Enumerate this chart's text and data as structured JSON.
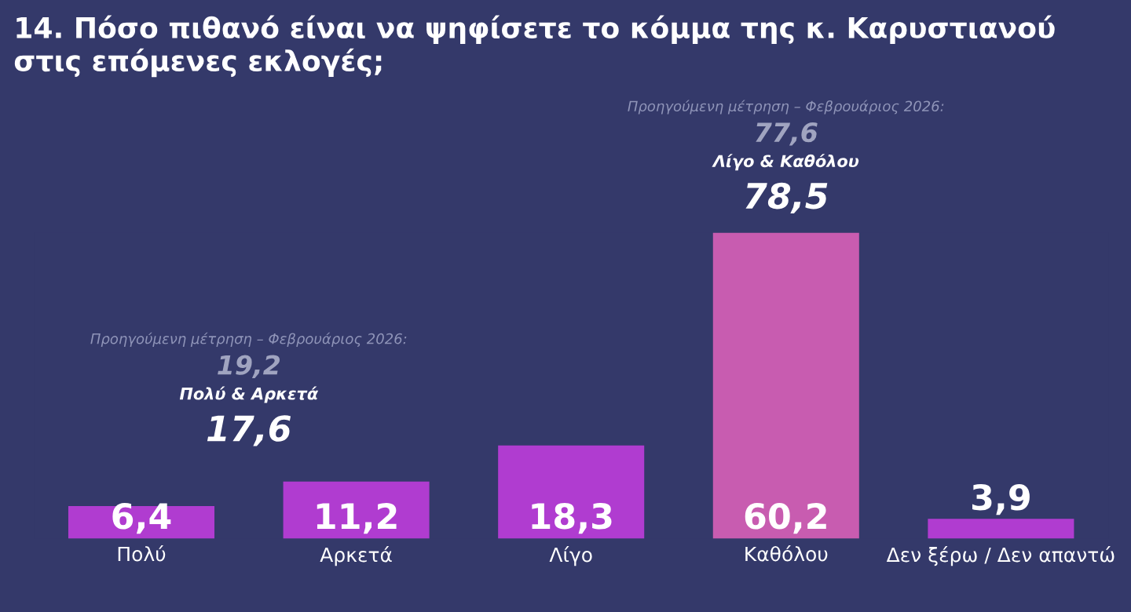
{
  "chart_data": {
    "type": "bar",
    "title": "14. Πόσο πιθανό είναι να ψηφίσετε το κόμμα της κ. Καρυστιανού στις επόμενες εκλογές;",
    "categories": [
      "Πολύ",
      "Αρκετά",
      "Λίγο",
      "Καθόλου",
      "Δεν ξέρω / Δεν απαντώ"
    ],
    "values": [
      6.4,
      11.2,
      18.3,
      60.2,
      3.9
    ],
    "colors": [
      "#b03cd0",
      "#b03cd0",
      "#b03cd0",
      "#c85cb0",
      "#b03cd0"
    ],
    "value_labels": [
      "6,4",
      "11,2",
      "18,3",
      "60,2",
      "3,9"
    ],
    "annotations": [
      "Προηγούμενη μέτρηση – Φεβρουάριος 2026:",
      "19,2",
      "Πολύ & Αρκετά",
      "17,6",
      "Προηγούμενη μέτρηση – Φεβρουάριος 2026:",
      "77,6",
      "Λίγο & Καθόλου",
      "78,5"
    ],
    "grid": false,
    "legend": false
  }
}
